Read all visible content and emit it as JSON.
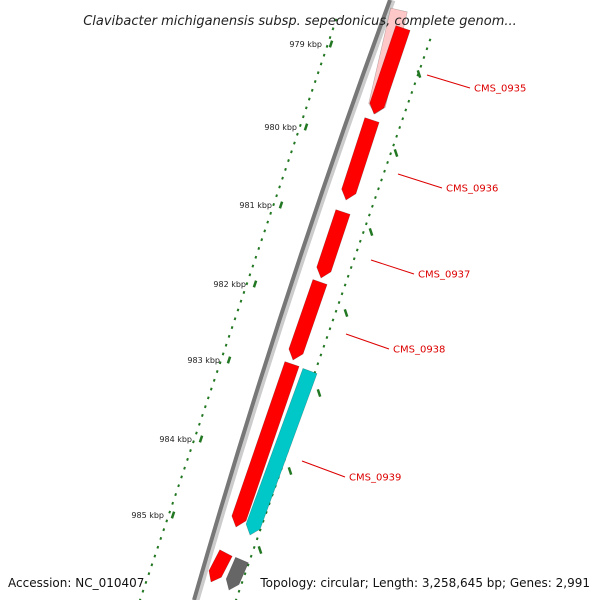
{
  "title": "Clavibacter michiganensis subsp. sepedonicus, complete genom...",
  "footer": {
    "accession": "Accession: NC_010407",
    "summary": "Topology: circular; Length: 3,258,645 bp; Genes: 2,991"
  },
  "ticks": [
    "979 kbp",
    "980 kbp",
    "981 kbp",
    "982 kbp",
    "983 kbp",
    "984 kbp",
    "985 kbp"
  ],
  "genes": [
    {
      "label": "CMS_0935"
    },
    {
      "label": "CMS_0936"
    },
    {
      "label": "CMS_0937"
    },
    {
      "label": "CMS_0938"
    },
    {
      "label": "CMS_0939"
    }
  ],
  "colors": {
    "forward_gene": "#ff0000",
    "reverse_gene": "#00c8c8",
    "other_feature": "#666666",
    "highlight": "#ffc8c8",
    "backbone": "#777777",
    "tick": "#227722",
    "label_line": "#dd0000"
  }
}
